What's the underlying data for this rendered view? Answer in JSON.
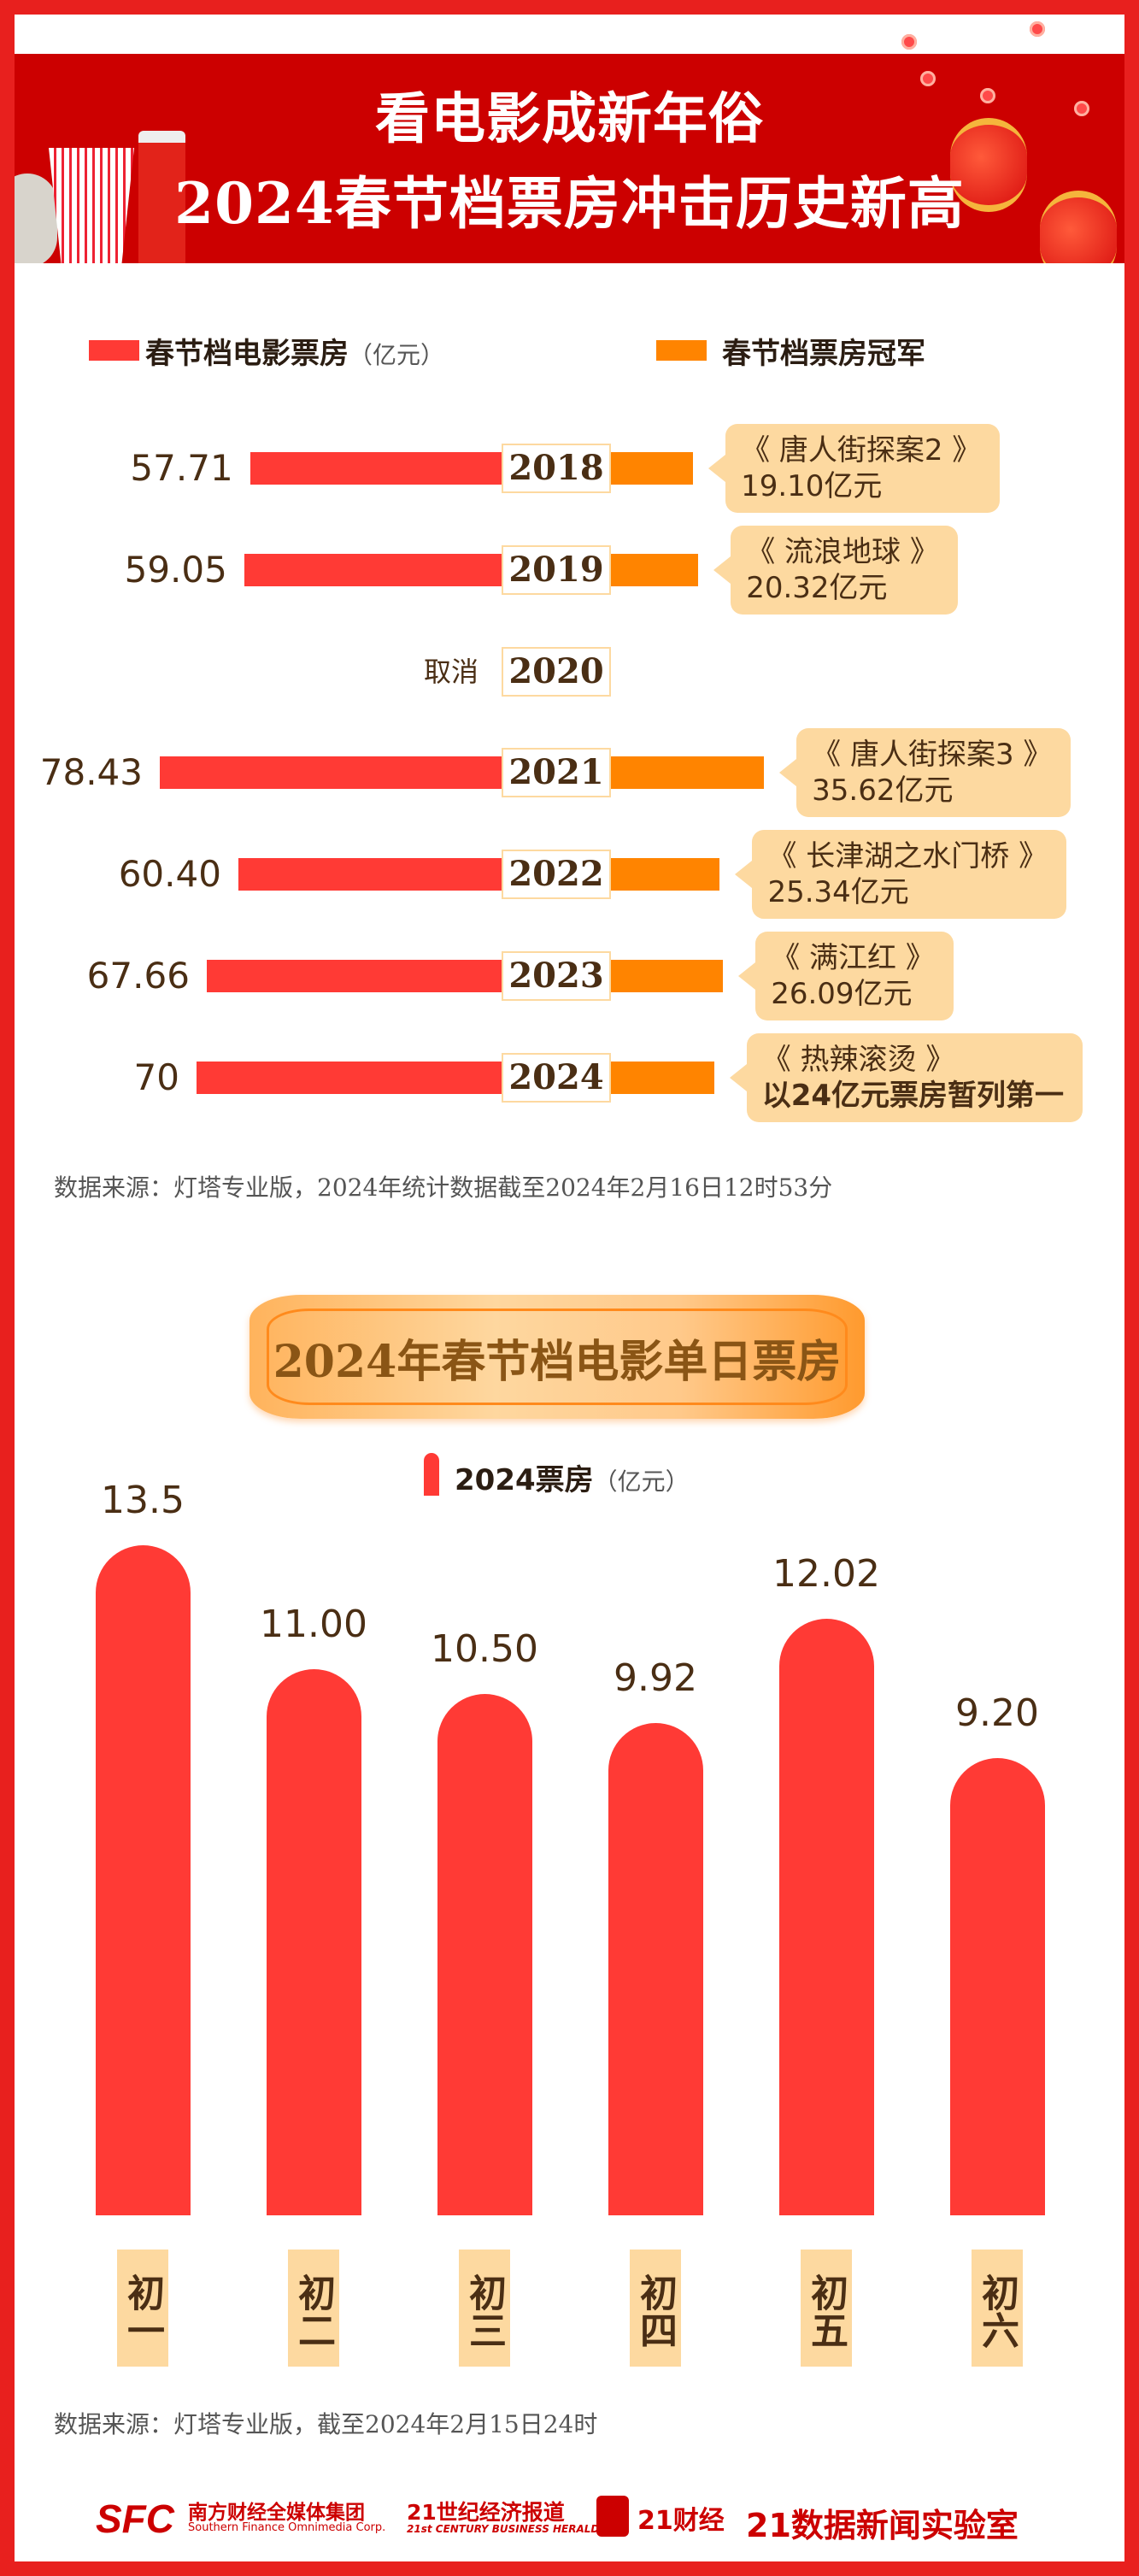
{
  "header": {
    "title_line1": "看电影成新年俗",
    "title_line2": "2024春节档票房冲击历史新高"
  },
  "chart_data": [
    {
      "type": "bar",
      "orientation": "horizontal",
      "legend": [
        {
          "name": "春节档电影票房",
          "unit": "（亿元）",
          "color": "#ff3a35"
        },
        {
          "name": "春节档票房冠军",
          "color": "#ff8400"
        }
      ],
      "categories": [
        "2018",
        "2019",
        "2020",
        "2021",
        "2022",
        "2023",
        "2024"
      ],
      "series": [
        {
          "name": "春节档电影票房",
          "values": [
            57.71,
            59.05,
            null,
            78.43,
            60.4,
            67.66,
            70
          ],
          "labels": [
            "57.71",
            "59.05",
            "取消",
            "78.43",
            "60.40",
            "67.66",
            "70"
          ]
        },
        {
          "name": "春节档票房冠军",
          "values": [
            19.1,
            20.32,
            null,
            35.62,
            25.34,
            26.09,
            24
          ]
        }
      ],
      "champions": [
        {
          "film": "《 唐人街探案2 》",
          "amount": "19.10亿元"
        },
        {
          "film": "《 流浪地球 》",
          "amount": "20.32亿元"
        },
        null,
        {
          "film": "《 唐人街探案3 》",
          "amount": "35.62亿元"
        },
        {
          "film": "《 长津湖之水门桥 》",
          "amount": "25.34亿元"
        },
        {
          "film": "《 满江红 》",
          "amount": "26.09亿元"
        },
        {
          "film": "《 热辣滚烫 》",
          "amount": "以24亿元票房暂列第一"
        }
      ],
      "source": "数据来源：灯塔专业版，2024年统计数据截至2024年2月16日12时53分"
    },
    {
      "type": "bar",
      "title": "2024年春节档电影单日票房",
      "legend": [
        {
          "name": "2024票房",
          "unit": "（亿元）",
          "color": "#ff3a35"
        }
      ],
      "categories": [
        "初一",
        "初二",
        "初三",
        "初四",
        "初五",
        "初六"
      ],
      "series": [
        {
          "name": "2024票房",
          "values": [
            13.5,
            11.0,
            10.5,
            9.92,
            12.02,
            9.2
          ],
          "labels": [
            "13.5",
            "11.00",
            "10.50",
            "9.92",
            "12.02",
            "9.20"
          ]
        }
      ],
      "ylim": [
        0,
        13.5
      ],
      "source": "数据来源：灯塔专业版，截至2024年2月15日24时"
    }
  ],
  "footer": {
    "logos": [
      "SFC",
      "南方财经全媒体集团",
      "Southern Finance Omnimedia Corp.",
      "21世纪经济报道",
      "21st CENTURY BUSINESS HERALD",
      "21财经",
      "21数据新闻实验室"
    ]
  }
}
